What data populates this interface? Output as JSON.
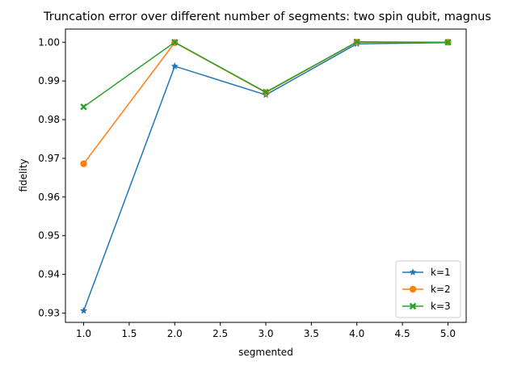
{
  "chart_data": {
    "type": "line",
    "title": "Truncation error over different number of segments: two spin qubit, magnus",
    "xlabel": "segmented",
    "ylabel": "fidelity",
    "xlim": [
      0.8,
      5.2
    ],
    "ylim": [
      0.9276,
      1.0034
    ],
    "x_ticks": [
      1.0,
      1.5,
      2.0,
      2.5,
      3.0,
      3.5,
      4.0,
      4.5,
      5.0
    ],
    "x_tick_labels": [
      "1.0",
      "1.5",
      "2.0",
      "2.5",
      "3.0",
      "3.5",
      "4.0",
      "4.5",
      "5.0"
    ],
    "y_ticks": [
      0.93,
      0.94,
      0.95,
      0.96,
      0.97,
      0.98,
      0.99,
      1.0
    ],
    "y_tick_labels": [
      "0.93",
      "0.94",
      "0.95",
      "0.96",
      "0.97",
      "0.98",
      "0.99",
      "1.00"
    ],
    "grid": false,
    "legend_position": "lower-right",
    "x": [
      1,
      2,
      3,
      4,
      5
    ],
    "series": [
      {
        "name": "k=1",
        "color": "#1f77b4",
        "marker": "star",
        "values": [
          0.9306,
          0.9938,
          0.9864,
          0.9996,
          0.9999
        ]
      },
      {
        "name": "k=2",
        "color": "#ff7f0e",
        "marker": "circle",
        "values": [
          0.9686,
          0.9999,
          0.987,
          1.0,
          1.0
        ]
      },
      {
        "name": "k=3",
        "color": "#2ca02c",
        "marker": "x-filled",
        "values": [
          0.9833,
          1.0,
          0.9871,
          1.0001,
          1.0
        ]
      }
    ]
  }
}
